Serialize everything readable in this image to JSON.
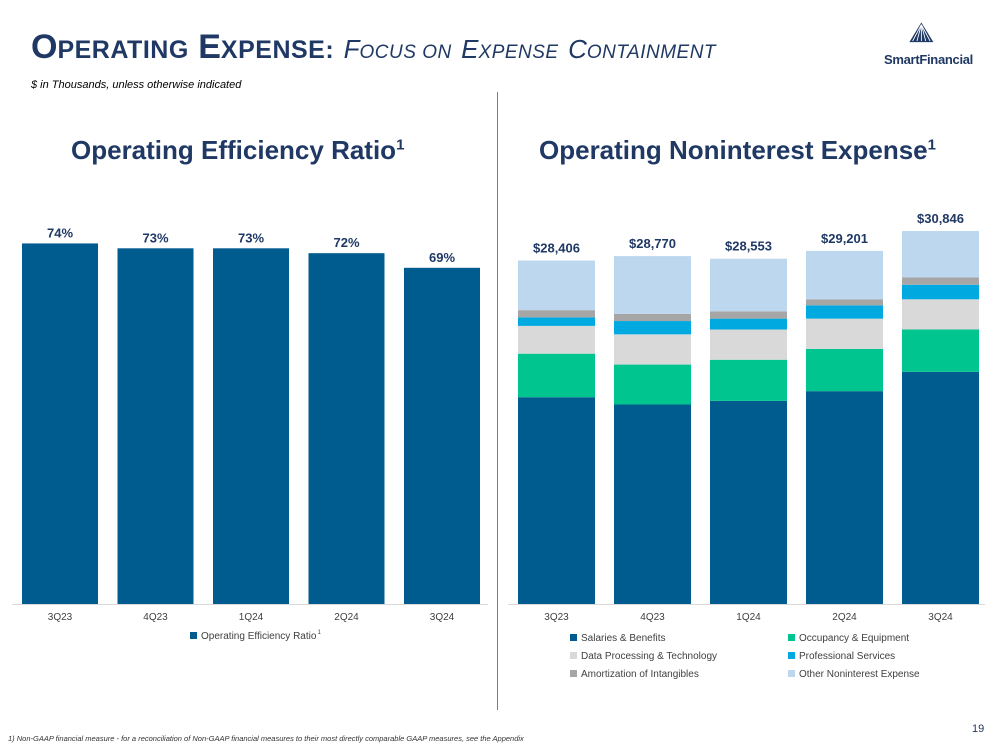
{
  "header": {
    "title_first_big": "O",
    "title_first_rest": "PERATING",
    "title_second_big": "E",
    "title_second_rest": "XPENSE:",
    "subtitle_f": "F",
    "subtitle_ocus": "OCUS ON",
    "subtitle_e": "E",
    "subtitle_xpense": "XPENSE",
    "subtitle_c": "C",
    "subtitle_ontainment": "ONTAINMENT",
    "units_note": "$ in Thousands, unless otherwise indicated",
    "logo_text": "SmartFinancial"
  },
  "colors": {
    "navy": "#1f3864",
    "bar_blue": "#005b8f",
    "salaries": "#005b8f",
    "occupancy": "#00c58e",
    "data_processing": "#d9d9d9",
    "professional": "#00a9e0",
    "amortization": "#a6a6a6",
    "other": "#bdd7ee"
  },
  "chart_data": [
    {
      "type": "bar",
      "title": "Operating Efficiency Ratio",
      "title_sup": "1",
      "categories": [
        "3Q23",
        "4Q23",
        "1Q24",
        "2Q24",
        "3Q24"
      ],
      "series": [
        {
          "name": "Operating Efficiency Ratio",
          "values": [
            74,
            73,
            73,
            72,
            69
          ]
        }
      ],
      "data_labels": [
        "74%",
        "73%",
        "73%",
        "72%",
        "69%"
      ],
      "legend_sup": "1",
      "ylim": [
        0,
        74.5
      ],
      "grid": false,
      "legend": "bottom"
    },
    {
      "type": "bar",
      "stacked": true,
      "title": "Operating Noninterest Expense",
      "title_sup": "1",
      "categories": [
        "3Q23",
        "4Q23",
        "1Q24",
        "2Q24",
        "3Q24"
      ],
      "totals": [
        28406,
        28770,
        28553,
        29201,
        30846
      ],
      "total_labels": [
        "$28,406",
        "$28,770",
        "$28,553",
        "$29,201",
        "$30,846"
      ],
      "series": [
        {
          "name": "Salaries & Benefits",
          "color_key": "salaries",
          "values": [
            17100,
            16500,
            16800,
            17600,
            19200
          ]
        },
        {
          "name": "Occupancy & Equipment",
          "color_key": "occupancy",
          "values": [
            3600,
            3300,
            3400,
            3500,
            3500
          ]
        },
        {
          "name": "Data Processing & Technology",
          "color_key": "data_processing",
          "values": [
            2300,
            2500,
            2500,
            2500,
            2500
          ]
        },
        {
          "name": "Professional Services",
          "color_key": "professional",
          "values": [
            700,
            1100,
            900,
            1100,
            1200
          ]
        },
        {
          "name": "Amortization of Intangibles",
          "color_key": "amortization",
          "values": [
            600,
            600,
            600,
            500,
            600
          ]
        },
        {
          "name": "Other Noninterest Expense",
          "color_key": "other",
          "values": [
            4106,
            4770,
            4353,
            4001,
            3846
          ]
        }
      ],
      "ylim": [
        0,
        31400
      ],
      "grid": false,
      "legend": "bottom"
    }
  ],
  "footer": {
    "footnote": "1) Non-GAAP financial measure - for a reconciliation of Non-GAAP financial measures to their most directly comparable GAAP measures, see the Appendix",
    "page_number": "19"
  }
}
